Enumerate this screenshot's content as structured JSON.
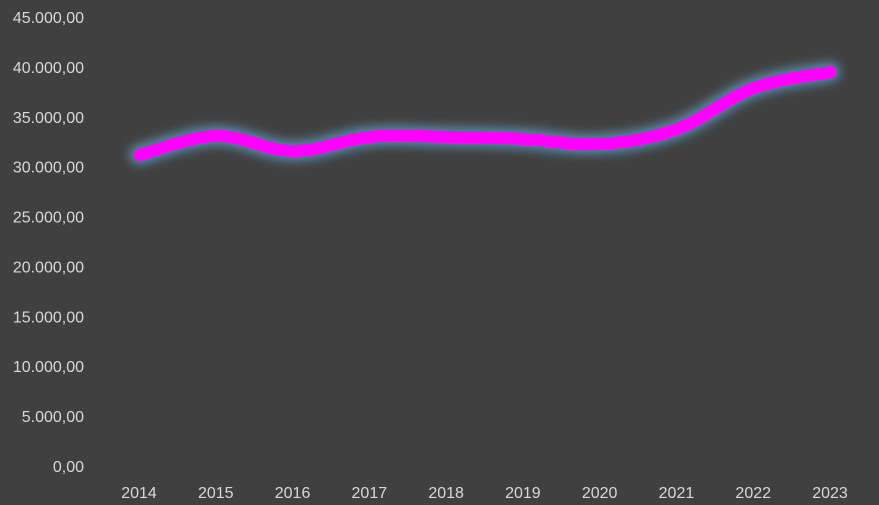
{
  "colors": {
    "background": "#404040",
    "line": "#ff00ff",
    "glow": "#6fc3ff",
    "text": "#d9d9d9"
  },
  "chart_data": {
    "type": "line",
    "categories": [
      "2014",
      "2015",
      "2016",
      "2017",
      "2018",
      "2019",
      "2020",
      "2021",
      "2022",
      "2023"
    ],
    "series": [
      {
        "values": [
          31200,
          33100,
          31600,
          33000,
          33000,
          32800,
          32300,
          33800,
          37900,
          39500
        ]
      }
    ],
    "y_ticks": [
      {
        "value": 0,
        "label": "0,00"
      },
      {
        "value": 5000,
        "label": "5.000,00"
      },
      {
        "value": 10000,
        "label": "10.000,00"
      },
      {
        "value": 15000,
        "label": "15.000,00"
      },
      {
        "value": 20000,
        "label": "20.000,00"
      },
      {
        "value": 25000,
        "label": "25.000,00"
      },
      {
        "value": 30000,
        "label": "30.000,00"
      },
      {
        "value": 35000,
        "label": "35.000,00"
      },
      {
        "value": 40000,
        "label": "40.000,00"
      },
      {
        "value": 45000,
        "label": "45.000,00"
      }
    ],
    "ylim": [
      0,
      45000
    ],
    "grid": false,
    "legend": "none"
  }
}
